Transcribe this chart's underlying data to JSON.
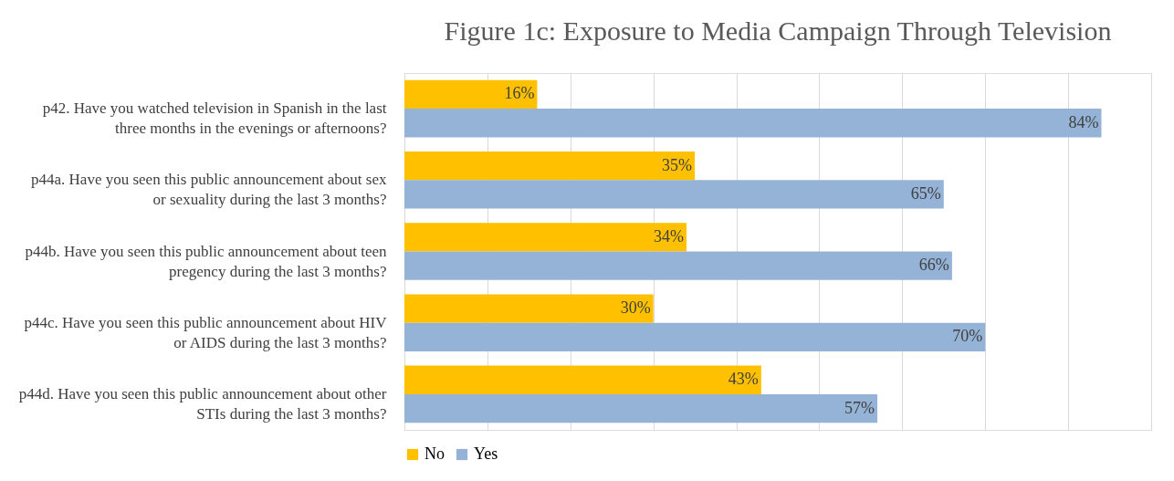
{
  "chart_data": {
    "type": "bar",
    "orientation": "horizontal",
    "title": "Figure 1c: Exposure to Media Campaign Through Television",
    "categories": [
      "p42.  Have you watched television in Spanish in the last\nthree months in the evenings or afternoons?",
      "p44a. Have you seen this public announcement about sex\nor sexuality during the last 3 months?",
      "p44b. Have you seen this public announcement  about teen\npregency during the last 3 months?",
      "p44c. Have you seen this public announcement about HIV\nor AIDS during the last 3 months?",
      "p44d. Have you seen this public announcement about other\nSTIs during the last 3 months?"
    ],
    "series": [
      {
        "name": "No",
        "color": "#ffc000",
        "values": [
          16,
          35,
          34,
          30,
          43
        ],
        "value_labels": [
          "16%",
          "35%",
          "34%",
          "30%",
          "43%"
        ]
      },
      {
        "name": "Yes",
        "color": "#95b3d7",
        "values": [
          84,
          65,
          66,
          70,
          57
        ],
        "value_labels": [
          "84%",
          "65%",
          "66%",
          "70%",
          "57%"
        ]
      }
    ],
    "tick_labels": "y",
    "grid": "x",
    "legend": "bottom"
  }
}
